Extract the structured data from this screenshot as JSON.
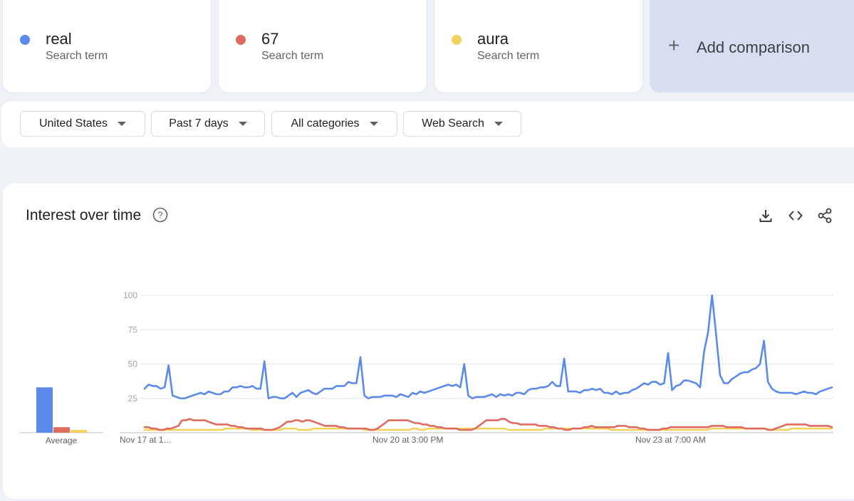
{
  "terms": [
    {
      "name": "real",
      "sub": "Search term",
      "color": "#5b8ae8"
    },
    {
      "name": "67",
      "sub": "Search term",
      "color": "#dd6b5f"
    },
    {
      "name": "aura",
      "sub": "Search term",
      "color": "#f2d25c"
    }
  ],
  "add_comparison": {
    "label": "Add comparison",
    "icon": "plus-icon"
  },
  "filters": [
    {
      "label": "United States"
    },
    {
      "label": "Past 7 days"
    },
    {
      "label": "All categories"
    },
    {
      "label": "Web Search"
    }
  ],
  "panel": {
    "title": "Interest over time",
    "help_icon": "help-circle-icon",
    "tools": [
      "download-icon",
      "embed-code-icon",
      "share-icon"
    ]
  },
  "chart_data": {
    "type": "line",
    "x_tick_labels": [
      "Nov 17 at 1…",
      "Nov 20 at 3:00 PM",
      "Nov 23 at 7:00 AM"
    ],
    "y_ticks": [
      25,
      50,
      75,
      100
    ],
    "ylim": [
      0,
      100
    ],
    "grid": true,
    "average_label": "Average",
    "averages": [
      {
        "name": "real",
        "value": 33
      },
      {
        "name": "67",
        "value": 4
      },
      {
        "name": "aura",
        "value": 2
      }
    ],
    "series": [
      {
        "name": "real",
        "color": "#5b8ae8",
        "values": [
          32,
          35,
          34,
          34,
          32,
          33,
          49,
          27,
          26,
          25,
          25,
          26,
          27,
          28,
          29,
          28,
          30,
          29,
          28,
          28,
          30,
          30,
          33,
          33,
          34,
          33,
          33,
          34,
          32,
          32,
          52,
          25,
          26,
          26,
          25,
          25,
          27,
          29,
          26,
          29,
          30,
          31,
          29,
          28,
          30,
          32,
          32,
          32,
          34,
          34,
          34,
          37,
          36,
          36,
          55,
          27,
          25,
          26,
          26,
          26,
          27,
          27,
          27,
          26,
          28,
          27,
          26,
          29,
          28,
          30,
          29,
          30,
          31,
          32,
          33,
          34,
          35,
          34,
          35,
          33,
          50,
          27,
          25,
          26,
          26,
          26,
          27,
          28,
          26,
          28,
          27,
          28,
          27,
          29,
          29,
          28,
          31,
          32,
          32,
          33,
          33,
          34,
          37,
          34,
          34,
          54,
          30,
          30,
          30,
          29,
          31,
          31,
          32,
          31,
          32,
          29,
          29,
          28,
          30,
          28,
          29,
          29,
          31,
          32,
          34,
          36,
          35,
          37,
          37,
          35,
          36,
          58,
          31,
          34,
          35,
          38,
          38,
          37,
          36,
          33,
          59,
          73,
          100,
          72,
          42,
          36,
          36,
          39,
          41,
          43,
          44,
          44,
          46,
          47,
          50,
          67,
          37,
          32,
          30,
          29,
          29,
          29,
          29,
          28,
          29,
          30,
          29,
          29,
          28,
          30,
          31,
          32,
          33
        ]
      },
      {
        "name": "67",
        "color": "#dd6b5f",
        "values": [
          4,
          4,
          3,
          3,
          2,
          2,
          3,
          3,
          4,
          5,
          9,
          9,
          10,
          9,
          9,
          9,
          9,
          8,
          7,
          6,
          6,
          6,
          6,
          5,
          5,
          4,
          4,
          3,
          3,
          3,
          3,
          3,
          2,
          2,
          2,
          3,
          4,
          6,
          8,
          8,
          9,
          9,
          8,
          9,
          9,
          8,
          7,
          6,
          5,
          5,
          5,
          5,
          4,
          4,
          3,
          3,
          3,
          3,
          3,
          3,
          2,
          2,
          3,
          5,
          7,
          9,
          9,
          9,
          9,
          9,
          9,
          8,
          7,
          7,
          6,
          6,
          5,
          5,
          4,
          4,
          3,
          3,
          3,
          3,
          2,
          2,
          2,
          2,
          3,
          5,
          7,
          9,
          9,
          9,
          9,
          10,
          10,
          8,
          7,
          7,
          6,
          6,
          6,
          6,
          6,
          5,
          5,
          5,
          4,
          4,
          3,
          3,
          2,
          2,
          3,
          3,
          3,
          4,
          4,
          5,
          4,
          4,
          4,
          4,
          4,
          4,
          5,
          5,
          5,
          4,
          4,
          4,
          3,
          3,
          2,
          2,
          2,
          2,
          3,
          3,
          4,
          4,
          4,
          4,
          4,
          4,
          4,
          4,
          4,
          4,
          4,
          5,
          5,
          5,
          5,
          4,
          4,
          4,
          4,
          4,
          3,
          3,
          3,
          3,
          3,
          3,
          2,
          2,
          3,
          4,
          5,
          6,
          6,
          6,
          6,
          6,
          6,
          5,
          5,
          5,
          5,
          5,
          5,
          4
        ]
      },
      {
        "name": "aura",
        "color": "#f2d25c",
        "values": [
          2,
          2,
          2,
          2,
          2,
          2,
          2,
          2,
          2,
          2,
          2,
          2,
          2,
          2,
          2,
          2,
          2,
          2,
          2,
          2,
          2,
          2,
          3,
          3,
          3,
          3,
          3,
          3,
          3,
          2,
          2,
          2,
          2,
          2,
          2,
          2,
          2,
          2,
          3,
          3,
          3,
          3,
          2,
          2,
          2,
          2,
          3,
          3,
          3,
          3,
          3,
          3,
          3,
          3,
          3,
          3,
          3,
          3,
          3,
          3,
          2,
          2,
          2,
          2,
          2,
          2,
          2,
          2,
          2,
          2,
          2,
          2,
          2,
          3,
          3,
          2,
          2,
          3,
          3,
          3,
          3,
          3,
          3,
          3,
          3,
          3,
          3,
          3,
          3,
          3,
          3,
          3,
          3,
          3,
          3,
          3,
          3,
          3,
          3,
          2,
          2,
          2,
          2,
          2,
          2,
          2,
          2,
          2,
          2,
          3,
          3,
          3,
          3,
          3,
          3,
          3,
          3,
          3,
          3,
          3,
          3,
          3,
          3,
          3,
          3,
          3,
          3,
          2,
          2,
          2,
          2,
          2,
          2,
          2,
          2,
          2,
          2,
          2,
          2,
          2,
          2,
          2,
          2,
          2,
          2,
          2,
          2,
          2,
          2,
          2,
          2,
          2,
          2,
          2,
          3,
          3,
          3,
          3,
          3,
          3,
          3,
          3,
          3,
          3,
          3,
          3,
          3,
          3,
          3,
          3,
          2,
          2,
          2,
          2,
          2,
          2,
          3,
          3,
          3,
          3,
          3,
          3,
          3,
          3,
          3,
          3,
          3,
          3
        ]
      }
    ]
  }
}
